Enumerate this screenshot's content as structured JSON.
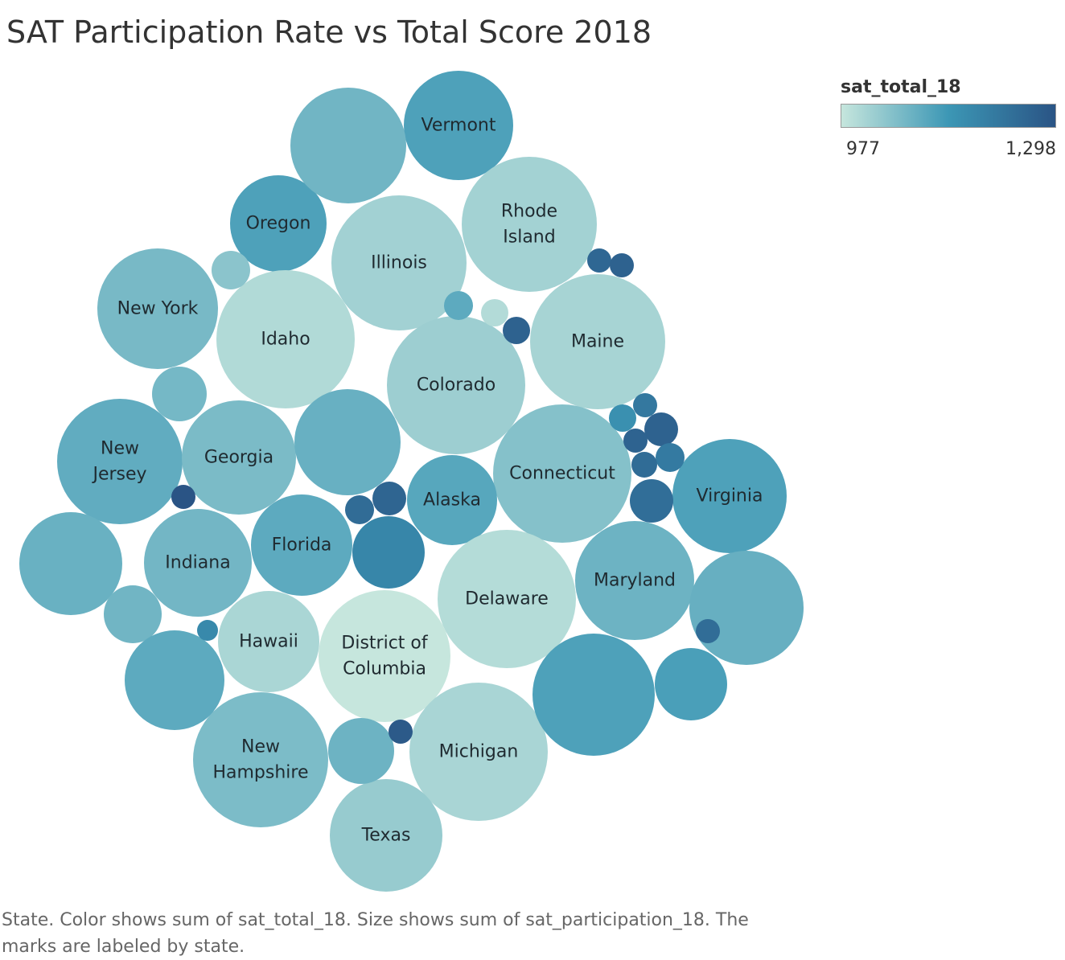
{
  "title": "SAT Participation Rate vs Total Score 2018",
  "legend": {
    "title": "sat_total_18",
    "min_label": "977",
    "max_label": "1,298",
    "min_value": 977,
    "max_value": 1298,
    "colors": [
      "#c6e6dd",
      "#3c97b5",
      "#2a5485"
    ]
  },
  "caption": "State.  Color shows sum of sat_total_18.  Size shows sum of sat_participation_18.  The marks are labeled by state.",
  "chart_data": {
    "type": "packed-bubble",
    "color_field": "sat_total_18",
    "size_field": "sat_participation_18",
    "label_field": "state",
    "bubbles": [
      {
        "label": "Vermont",
        "lines": [
          "Vermont"
        ],
        "participation": 0.64,
        "total": 1117
      },
      {
        "label": "Rhode Island",
        "lines": [
          "Rhode",
          "Island"
        ],
        "participation": 0.97,
        "total": 1018
      },
      {
        "label": "Oregon",
        "lines": [
          "Oregon"
        ],
        "participation": 0.48,
        "total": 1117
      },
      {
        "label": "Illinois",
        "lines": [
          "Illinois"
        ],
        "participation": 0.99,
        "total": 1019
      },
      {
        "label": "New York",
        "lines": [
          "New York"
        ],
        "participation": 0.79,
        "total": 1068
      },
      {
        "label": "Idaho",
        "lines": [
          "Idaho"
        ],
        "participation": 1.0,
        "total": 1001
      },
      {
        "label": "Maine",
        "lines": [
          "Maine"
        ],
        "participation": 0.99,
        "total": 1013
      },
      {
        "label": "Colorado",
        "lines": [
          "Colorado"
        ],
        "participation": 1.0,
        "total": 1025
      },
      {
        "label": "New Jersey",
        "lines": [
          "New",
          "Jersey"
        ],
        "participation": 0.82,
        "total": 1094
      },
      {
        "label": "Georgia",
        "lines": [
          "Georgia"
        ],
        "participation": 0.7,
        "total": 1064
      },
      {
        "label": "Connecticut",
        "lines": [
          "Connecticut"
        ],
        "participation": 1.0,
        "total": 1053
      },
      {
        "label": "Alaska",
        "lines": [
          "Alaska"
        ],
        "participation": 0.43,
        "total": 1106
      },
      {
        "label": "Virginia",
        "lines": [
          "Virginia"
        ],
        "participation": 0.68,
        "total": 1117
      },
      {
        "label": "Indiana",
        "lines": [
          "Indiana"
        ],
        "participation": 0.63,
        "total": 1074
      },
      {
        "label": "Florida",
        "lines": [
          "Florida"
        ],
        "participation": 0.56,
        "total": 1099
      },
      {
        "label": "Maryland",
        "lines": [
          "Maryland"
        ],
        "participation": 0.76,
        "total": 1080
      },
      {
        "label": "Delaware",
        "lines": [
          "Delaware"
        ],
        "participation": 1.0,
        "total": 998
      },
      {
        "label": "Hawaii",
        "lines": [
          "Hawaii"
        ],
        "participation": 0.56,
        "total": 1010
      },
      {
        "label": "District of Columbia",
        "lines": [
          "District of",
          "Columbia"
        ],
        "participation": 0.92,
        "total": 977
      },
      {
        "label": "Michigan",
        "lines": [
          "Michigan"
        ],
        "participation": 1.0,
        "total": 1011
      },
      {
        "label": "New Hampshire",
        "lines": [
          "New",
          "Hampshire"
        ],
        "participation": 0.96,
        "total": 1063
      },
      {
        "label": "Texas",
        "lines": [
          "Texas"
        ],
        "participation": 0.66,
        "total": 1032
      },
      {
        "label": "",
        "lines": [],
        "participation": 0.7,
        "total": 1076
      },
      {
        "label": "",
        "lines": [],
        "participation": 0.06,
        "total": 1046
      },
      {
        "label": "",
        "lines": [],
        "participation": 0.08,
        "total": 1071
      },
      {
        "label": "",
        "lines": [],
        "participation": 0.59,
        "total": 1086
      },
      {
        "label": "",
        "lines": [],
        "participation": 0.57,
        "total": 1085
      },
      {
        "label": "",
        "lines": [],
        "participation": 0.52,
        "total": 1076
      },
      {
        "label": "",
        "lines": [],
        "participation": 0.18,
        "total": 1099
      },
      {
        "label": "",
        "lines": [],
        "participation": 0.53,
        "total": 1088
      },
      {
        "label": "",
        "lines": [],
        "participation": 0.29,
        "total": 1117
      },
      {
        "label": "",
        "lines": [],
        "participation": 0.8,
        "total": 1121
      },
      {
        "label": "",
        "lines": [],
        "participation": 0.7,
        "total": 1081
      },
      {
        "label": "",
        "lines": [],
        "participation": 0.23,
        "total": 1099
      },
      {
        "label": "",
        "lines": [],
        "participation": 0.7,
        "total": 999
      },
      {
        "label": "",
        "lines": [],
        "participation": 0.04,
        "total": 1265
      },
      {
        "label": "",
        "lines": [],
        "participation": 0.03,
        "total": 1252
      },
      {
        "label": "",
        "lines": [],
        "participation": 0.04,
        "total": 1265
      },
      {
        "label": "",
        "lines": [],
        "participation": 0.04,
        "total": 1211
      },
      {
        "label": "",
        "lines": [],
        "participation": 0.05,
        "total": 1155
      },
      {
        "label": "",
        "lines": [],
        "participation": 0.05,
        "total": 1265
      },
      {
        "label": "",
        "lines": [],
        "participation": 0.03,
        "total": 1262
      },
      {
        "label": "",
        "lines": [],
        "participation": 0.08,
        "total": 1206
      },
      {
        "label": "",
        "lines": [],
        "participation": 0.04,
        "total": 1241
      },
      {
        "label": "",
        "lines": [],
        "participation": 0.05,
        "total": 1236
      },
      {
        "label": "",
        "lines": [],
        "participation": 0.03,
        "total": 1298
      },
      {
        "label": "",
        "lines": [],
        "participation": 0.03,
        "total": 1240
      },
      {
        "label": "",
        "lines": [],
        "participation": 0.02,
        "total": 1257
      },
      {
        "label": "",
        "lines": [],
        "participation": 0.1,
        "total": 1178
      },
      {
        "label": "",
        "lines": [],
        "participation": 0.04,
        "total": 1171
      },
      {
        "label": "",
        "lines": [],
        "participation": 0.03,
        "total": 1283
      },
      {
        "label": "",
        "lines": [],
        "participation": 0.03,
        "total": 1238
      }
    ]
  }
}
